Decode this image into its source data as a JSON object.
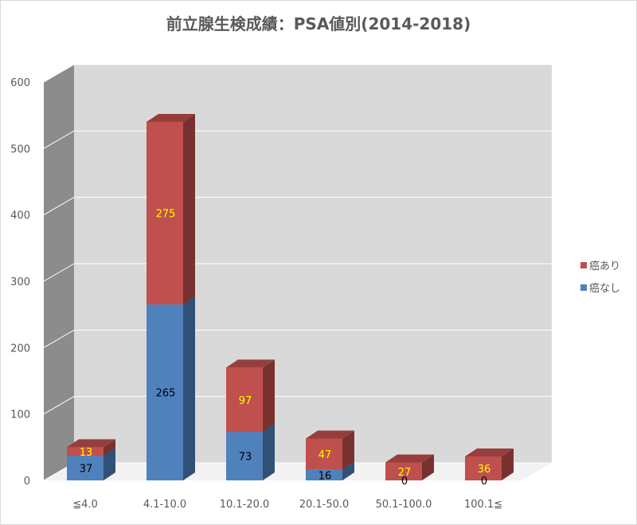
{
  "chart_data": {
    "type": "bar",
    "stacked": true,
    "three_d": true,
    "title": "前立腺生検成績：PSA値別(2014-2018)",
    "categories": [
      "≦4.0",
      "4.1-10.0",
      "10.1-20.0",
      "20.1-50.0",
      "50.1-100.0",
      "100.1≦"
    ],
    "series": [
      {
        "name": "癌なし",
        "values": [
          37,
          265,
          73,
          16,
          0,
          0
        ],
        "color": "#4f81bd",
        "label_color": "#000000"
      },
      {
        "name": "癌あり",
        "values": [
          13,
          275,
          97,
          47,
          27,
          36
        ],
        "color": "#c0504d",
        "label_color": "#ffff00"
      }
    ],
    "ylim": [
      0,
      600
    ],
    "yticks": [
      0,
      100,
      200,
      300,
      400,
      500,
      600
    ],
    "grid": true,
    "legend": "right"
  }
}
